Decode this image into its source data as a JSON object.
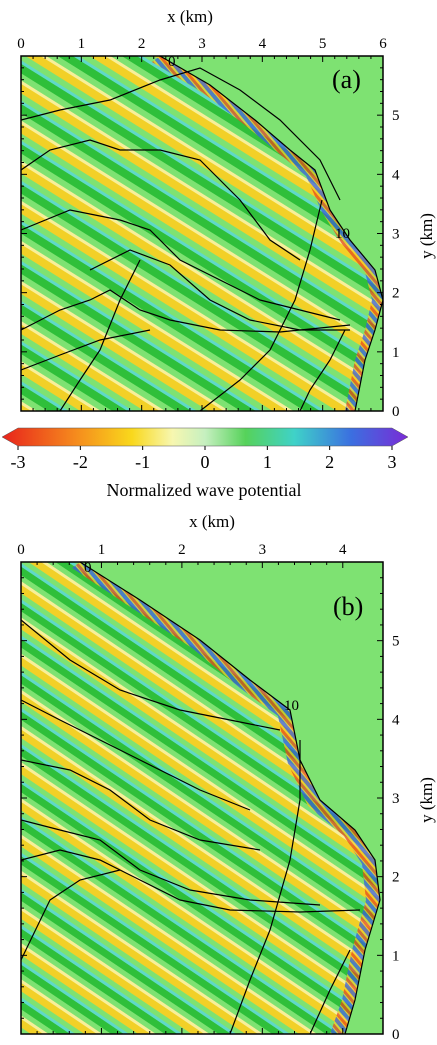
{
  "chart_data": [
    {
      "type": "heatmap",
      "panel_label": "(a)",
      "xlabel": "x (km)",
      "ylabel": "y (km)",
      "xlim": [
        0,
        6
      ],
      "ylim": [
        0,
        6
      ],
      "x_ticks": [
        "0",
        "1",
        "2",
        "3",
        "4",
        "5",
        "6"
      ],
      "y_ticks": [
        "0",
        "1",
        "2",
        "3",
        "4",
        "5"
      ],
      "contour_labels": [
        "0",
        "10"
      ]
    },
    {
      "type": "heatmap",
      "panel_label": "(b)",
      "xlabel": "x (km)",
      "ylabel": "y (km)",
      "xlim": [
        0,
        4.5
      ],
      "ylim": [
        0,
        6
      ],
      "x_ticks": [
        "0",
        "1",
        "2",
        "3",
        "4"
      ],
      "y_ticks": [
        "0",
        "1",
        "2",
        "3",
        "4",
        "5"
      ],
      "contour_labels": [
        "0",
        "10"
      ]
    }
  ],
  "colorbar": {
    "label": "Normalized wave potential",
    "range": [
      -3,
      3
    ],
    "tick_labels": [
      "-3",
      "-2",
      "-1",
      "0",
      "1",
      "2",
      "3"
    ],
    "colors": [
      "#e8231c",
      "#f26a1d",
      "#f7a21c",
      "#f9d81c",
      "#f7f7a0",
      "#bdf0b8",
      "#6edc5c",
      "#3ec46a",
      "#3fd2c8",
      "#3ea0e6",
      "#3b4fd8",
      "#7a2bd6"
    ]
  },
  "colors": {
    "background_green": "#7ee272",
    "crest_yellow": "#f2d027",
    "trough_green": "#2fbf3a",
    "contour": "#000000"
  }
}
